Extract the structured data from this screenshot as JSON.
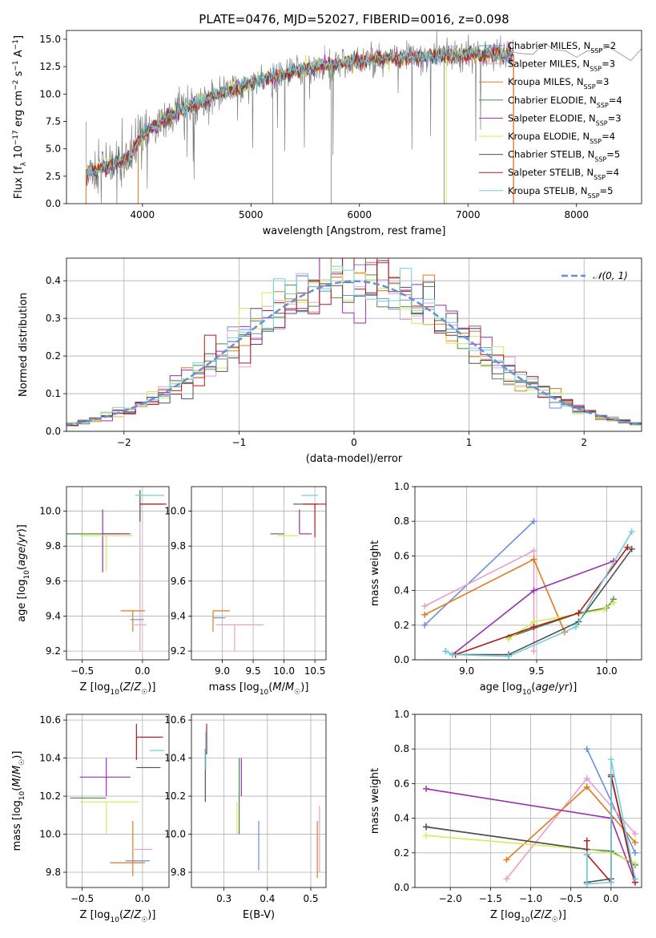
{
  "figure": {
    "title": "PLATE=0476, MJD=52027, FIBERID=0016, z=0.098"
  },
  "colors": {
    "chabrier_miles": "#6a8fd8",
    "salpeter_miles": "#e8a0c8",
    "kroupa_miles": "#e07a1f",
    "chabrier_elodie": "#4c8a4c",
    "salpeter_elodie": "#9a2fb0",
    "kroupa_elodie": "#d8e85a",
    "chabrier_stelib": "#505050",
    "salpeter_stelib": "#b01c1c",
    "kroupa_stelib": "#6fd0e0",
    "data": "#808080",
    "grid": "#b0b0b0",
    "normal_curve": "#6a8fd8"
  },
  "chart_data": [
    {
      "id": "spectrum",
      "type": "line",
      "xlabel": "wavelength [Angstrom, rest frame]",
      "ylabel": "Flux [f_λ 10^-17 erg cm^-2 s^-1 A^-1]",
      "xlim": [
        3300,
        8600
      ],
      "ylim": [
        0,
        15.8
      ],
      "xticks": [
        4000,
        5000,
        6000,
        7000,
        8000
      ],
      "yticks": [
        0.0,
        2.5,
        5.0,
        7.5,
        10.0,
        12.5,
        15.0
      ],
      "grid": false,
      "legend_position": "top-right",
      "legend": [
        {
          "label": "Chabrier MILES, N",
          "sub": "SSP",
          "suffix": "=2",
          "color_key": "chabrier_miles"
        },
        {
          "label": "Salpeter MILES, N",
          "sub": "SSP",
          "suffix": "=3",
          "color_key": "salpeter_miles"
        },
        {
          "label": "Kroupa MILES, N",
          "sub": "SSP",
          "suffix": "=3",
          "color_key": "kroupa_miles"
        },
        {
          "label": "Chabrier ELODIE, N",
          "sub": "SSP",
          "suffix": "=4",
          "color_key": "chabrier_elodie"
        },
        {
          "label": "Salpeter ELODIE, N",
          "sub": "SSP",
          "suffix": "=3",
          "color_key": "salpeter_elodie"
        },
        {
          "label": "Kroupa ELODIE, N",
          "sub": "SSP",
          "suffix": "=4",
          "color_key": "kroupa_elodie"
        },
        {
          "label": "Chabrier STELIB, N",
          "sub": "SSP",
          "suffix": "=5",
          "color_key": "chabrier_stelib"
        },
        {
          "label": "Salpeter STELIB, N",
          "sub": "SSP",
          "suffix": "=4",
          "color_key": "salpeter_stelib"
        },
        {
          "label": "Kroupa STELIB, N",
          "sub": "SSP",
          "suffix": "=5",
          "color_key": "kroupa_stelib"
        }
      ],
      "model_continuum": {
        "x": [
          3480,
          3600,
          3700,
          3800,
          3900,
          3950,
          4000,
          4100,
          4200,
          4300,
          4400,
          4500,
          4600,
          4800,
          5000,
          5200,
          5400,
          5600,
          5800,
          6000,
          6200,
          6400,
          6600,
          6800,
          7000,
          7200,
          7400
        ],
        "y": [
          2.8,
          3.2,
          3.5,
          3.8,
          4.2,
          5.8,
          6.3,
          7.0,
          7.6,
          8.2,
          8.7,
          9.1,
          9.6,
          10.3,
          11.0,
          11.6,
          12.1,
          12.5,
          12.8,
          13.0,
          13.2,
          13.3,
          13.4,
          13.5,
          13.6,
          13.6,
          13.6
        ]
      },
      "data_extra": {
        "x": [
          7500,
          7600,
          7700,
          7800,
          7900,
          8000,
          8100,
          8200,
          8300,
          8400,
          8500,
          8600
        ],
        "y": [
          14.2,
          13.9,
          14.5,
          14.0,
          14.3,
          13.8,
          14.1,
          13.9,
          14.4,
          14.0,
          13.7,
          14.2
        ]
      }
    },
    {
      "id": "residuals",
      "type": "histogram",
      "xlabel": "(data-model)/error",
      "ylabel": "Normed distribution",
      "xlim": [
        -2.5,
        2.5
      ],
      "ylim": [
        0,
        0.46
      ],
      "xticks": [
        -2,
        -1,
        0,
        1,
        2
      ],
      "yticks": [
        0.0,
        0.1,
        0.2,
        0.3,
        0.4
      ],
      "grid": true,
      "legend_label": "𝒩(0, 1)",
      "legend_position": "top-right",
      "bin_width": 0.1
    },
    {
      "id": "age_vs_Z",
      "type": "errorbar",
      "xlabel": "Z [log10(Z/Z☉)]",
      "ylabel": "age [log10(age/yr)]",
      "xlim": [
        -0.63,
        0.22
      ],
      "ylim": [
        9.15,
        10.14
      ],
      "xticks": [
        -0.5,
        0.0
      ],
      "yticks": [
        9.2,
        9.4,
        9.6,
        9.8,
        10.0
      ],
      "grid": true,
      "points": [
        {
          "model": "chabrier_miles",
          "x": -0.05,
          "xerr": [
            0.05,
            0.06
          ],
          "y": 9.38,
          "yerr": [
            0.0,
            0.0
          ]
        },
        {
          "model": "salpeter_miles",
          "x": -0.02,
          "xerr": [
            0.05,
            0.05
          ],
          "y": 9.35,
          "yerr": [
            0.15,
            0.73
          ]
        },
        {
          "model": "kroupa_miles",
          "x": -0.08,
          "xerr": [
            0.1,
            0.1
          ],
          "y": 9.43,
          "yerr": [
            0.12,
            0.0
          ]
        },
        {
          "model": "chabrier_elodie",
          "x": -0.34,
          "xerr": [
            0.29,
            0.17
          ],
          "y": 9.87,
          "yerr": [
            0.0,
            0.0
          ]
        },
        {
          "model": "salpeter_elodie",
          "x": -0.33,
          "xerr": [
            0.0,
            0.23
          ],
          "y": 9.87,
          "yerr": [
            0.22,
            0.14
          ]
        },
        {
          "model": "kroupa_elodie",
          "x": -0.3,
          "xerr": [
            0.22,
            0.22
          ],
          "y": 9.86,
          "yerr": [
            0.2,
            0.0
          ]
        },
        {
          "model": "chabrier_stelib",
          "x": -0.02,
          "xerr": [
            0.0,
            0.2
          ],
          "y": 10.04,
          "yerr": [
            0.1,
            0.08
          ]
        },
        {
          "model": "salpeter_stelib",
          "x": -0.02,
          "xerr": [
            0.0,
            0.22
          ],
          "y": 10.04,
          "yerr": [
            0.0,
            0.0
          ]
        },
        {
          "model": "kroupa_stelib",
          "x": 0.04,
          "xerr": [
            0.1,
            0.14
          ],
          "y": 10.09,
          "yerr": [
            0.0,
            0.0
          ]
        }
      ]
    },
    {
      "id": "age_vs_mass",
      "type": "errorbar",
      "xlabel": "mass [log10(M/M☉)]",
      "xlim": [
        8.5,
        10.68
      ],
      "ylim": [
        9.15,
        10.14
      ],
      "xticks": [
        9.0,
        9.5,
        10.0,
        10.5
      ],
      "yticks": [
        9.2,
        9.4,
        9.6,
        9.8,
        10.0
      ],
      "grid": true,
      "points": [
        {
          "model": "chabrier_miles",
          "x": 8.85,
          "xerr": [
            0.0,
            0.2
          ],
          "y": 9.39,
          "yerr": [
            0.0,
            0.0
          ]
        },
        {
          "model": "salpeter_miles",
          "x": 9.2,
          "xerr": [
            0.3,
            0.47
          ],
          "y": 9.35,
          "yerr": [
            0.15,
            0.0
          ]
        },
        {
          "model": "kroupa_miles",
          "x": 8.85,
          "xerr": [
            0.0,
            0.27
          ],
          "y": 9.43,
          "yerr": [
            0.12,
            0.0
          ]
        },
        {
          "model": "chabrier_elodie",
          "x": 10.0,
          "xerr": [
            0.22,
            0.0
          ],
          "y": 9.87,
          "yerr": [
            0.0,
            0.0
          ]
        },
        {
          "model": "salpeter_elodie",
          "x": 10.25,
          "xerr": [
            0.0,
            0.2
          ],
          "y": 9.87,
          "yerr": [
            0.0,
            0.14
          ]
        },
        {
          "model": "kroupa_elodie",
          "x": 10.15,
          "xerr": [
            0.25,
            0.08
          ],
          "y": 9.86,
          "yerr": [
            0.0,
            0.0
          ]
        },
        {
          "model": "chabrier_stelib",
          "x": 10.35,
          "xerr": [
            0.2,
            0.2
          ],
          "y": 10.04,
          "yerr": [
            0.0,
            0.0
          ]
        },
        {
          "model": "salpeter_stelib",
          "x": 10.5,
          "xerr": [
            0.2,
            0.2
          ],
          "y": 10.04,
          "yerr": [
            0.19,
            0.0
          ]
        },
        {
          "model": "kroupa_stelib",
          "x": 10.43,
          "xerr": [
            0.15,
            0.12
          ],
          "y": 10.09,
          "yerr": [
            0.0,
            0.0
          ]
        }
      ]
    },
    {
      "id": "weight_vs_age",
      "type": "line",
      "xlabel": "age [log10(age/yr)]",
      "ylabel": "mass weight",
      "xlim": [
        8.63,
        10.25
      ],
      "ylim": [
        0,
        1.0
      ],
      "xticks": [
        9.0,
        9.5,
        10.0
      ],
      "yticks": [
        0.0,
        0.2,
        0.4,
        0.6,
        0.8,
        1.0
      ],
      "grid": true,
      "series": [
        {
          "model": "chabrier_miles",
          "x": [
            8.7,
            9.48
          ],
          "y": [
            0.2,
            0.8
          ]
        },
        {
          "model": "salpeter_miles",
          "x": [
            8.7,
            9.48,
            9.48
          ],
          "y": [
            0.31,
            0.63,
            0.05
          ]
        },
        {
          "model": "kroupa_miles",
          "x": [
            8.7,
            9.48,
            9.7
          ],
          "y": [
            0.26,
            0.58,
            0.16
          ]
        },
        {
          "model": "chabrier_elodie",
          "x": [
            9.3,
            9.8,
            10.0,
            10.05
          ],
          "y": [
            0.13,
            0.27,
            0.3,
            0.35
          ]
        },
        {
          "model": "salpeter_elodie",
          "x": [
            8.9,
            9.48,
            10.05
          ],
          "y": [
            0.03,
            0.4,
            0.57
          ]
        },
        {
          "model": "kroupa_elodie",
          "x": [
            9.3,
            9.48,
            9.98,
            10.05
          ],
          "y": [
            0.12,
            0.22,
            0.29,
            0.33
          ]
        },
        {
          "model": "chabrier_stelib",
          "x": [
            8.85,
            8.9,
            9.3,
            9.8,
            10.18
          ],
          "y": [
            0.05,
            0.03,
            0.03,
            0.22,
            0.64
          ]
        },
        {
          "model": "salpeter_stelib",
          "x": [
            8.92,
            9.48,
            9.8,
            10.15
          ],
          "y": [
            0.03,
            0.19,
            0.27,
            0.65
          ]
        },
        {
          "model": "kroupa_stelib",
          "x": [
            8.85,
            8.9,
            9.3,
            9.78,
            10.18
          ],
          "y": [
            0.05,
            0.03,
            0.02,
            0.19,
            0.74
          ]
        }
      ]
    },
    {
      "id": "mass_vs_Z",
      "type": "errorbar",
      "xlabel": "Z [log10(Z/Z☉)]",
      "ylabel": "mass [log10(M/M☉)]",
      "xlim": [
        -0.63,
        0.22
      ],
      "ylim": [
        9.72,
        10.63
      ],
      "xticks": [
        -0.5,
        0.0
      ],
      "yticks": [
        9.8,
        10.0,
        10.2,
        10.4,
        10.6
      ],
      "grid": true,
      "points": [
        {
          "model": "chabrier_miles",
          "x": -0.04,
          "xerr": [
            0.1,
            0.1
          ],
          "y": 9.86,
          "yerr": [
            0.0,
            0.0
          ]
        },
        {
          "model": "salpeter_miles",
          "x": 0.0,
          "xerr": [
            0.07,
            0.08
          ],
          "y": 9.92,
          "yerr": [
            0.0,
            0.0
          ]
        },
        {
          "model": "kroupa_miles",
          "x": -0.08,
          "xerr": [
            0.19,
            0.1
          ],
          "y": 9.85,
          "yerr": [
            0.07,
            0.22
          ]
        },
        {
          "model": "chabrier_elodie",
          "x": -0.3,
          "xerr": [
            0.3,
            0.0
          ],
          "y": 10.19,
          "yerr": [
            0.0,
            0.0
          ]
        },
        {
          "model": "salpeter_elodie",
          "x": -0.3,
          "xerr": [
            0.22,
            0.2
          ],
          "y": 10.3,
          "yerr": [
            0.1,
            0.1
          ]
        },
        {
          "model": "kroupa_elodie",
          "x": -0.3,
          "xerr": [
            0.22,
            0.27
          ],
          "y": 10.17,
          "yerr": [
            0.17,
            0.0
          ]
        },
        {
          "model": "chabrier_stelib",
          "x": -0.05,
          "xerr": [
            0.0,
            0.2
          ],
          "y": 10.35,
          "yerr": [
            0.0,
            0.0
          ]
        },
        {
          "model": "salpeter_stelib",
          "x": -0.05,
          "xerr": [
            0.0,
            0.22
          ],
          "y": 10.51,
          "yerr": [
            0.12,
            0.07
          ]
        },
        {
          "model": "kroupa_stelib",
          "x": 0.06,
          "xerr": [
            0.0,
            0.12
          ],
          "y": 10.44,
          "yerr": [
            0.0,
            0.0
          ]
        }
      ]
    },
    {
      "id": "mass_vs_ebv",
      "type": "errorbar",
      "xlabel": "E(B-V)",
      "xlim": [
        0.225,
        0.535
      ],
      "ylim": [
        9.72,
        10.63
      ],
      "xticks": [
        0.3,
        0.4,
        0.5
      ],
      "yticks": [
        9.8,
        10.0,
        10.2,
        10.4,
        10.6
      ],
      "grid": true,
      "points": [
        {
          "model": "chabrier_miles",
          "x": 0.38,
          "xerr": [
            0.0,
            0.0
          ],
          "y": 9.94,
          "yerr": [
            0.13,
            0.13
          ]
        },
        {
          "model": "salpeter_miles",
          "x": 0.52,
          "xerr": [
            0.0,
            0.0
          ],
          "y": 9.95,
          "yerr": [
            0.15,
            0.2
          ]
        },
        {
          "model": "kroupa_miles",
          "x": 0.515,
          "xerr": [
            0.0,
            0.0
          ],
          "y": 9.9,
          "yerr": [
            0.13,
            0.17
          ]
        },
        {
          "model": "chabrier_elodie",
          "x": 0.335,
          "xerr": [
            0.0,
            0.0
          ],
          "y": 10.2,
          "yerr": [
            0.2,
            0.2
          ]
        },
        {
          "model": "salpeter_elodie",
          "x": 0.34,
          "xerr": [
            0.0,
            0.0
          ],
          "y": 10.3,
          "yerr": [
            0.1,
            0.1
          ]
        },
        {
          "model": "kroupa_elodie",
          "x": 0.33,
          "xerr": [
            0.0,
            0.0
          ],
          "y": 10.17,
          "yerr": [
            0.17,
            0.0
          ]
        },
        {
          "model": "chabrier_stelib",
          "x": 0.257,
          "xerr": [
            0.0,
            0.0
          ],
          "y": 10.35,
          "yerr": [
            0.18,
            0.1
          ]
        },
        {
          "model": "salpeter_stelib",
          "x": 0.26,
          "xerr": [
            0.0,
            0.0
          ],
          "y": 10.5,
          "yerr": [
            0.08,
            0.08
          ]
        },
        {
          "model": "kroupa_stelib",
          "x": 0.258,
          "xerr": [
            0.0,
            0.0
          ],
          "y": 10.44,
          "yerr": [
            0.1,
            0.1
          ]
        }
      ]
    },
    {
      "id": "weight_vs_Z",
      "type": "line",
      "xlabel": "Z [log10(Z/Z☉)]",
      "ylabel": "mass weight",
      "xlim": [
        -2.44,
        0.38
      ],
      "ylim": [
        0,
        1.0
      ],
      "xticks": [
        -2.0,
        -1.5,
        -1.0,
        -0.5,
        0.0
      ],
      "yticks": [
        0.0,
        0.2,
        0.4,
        0.6,
        0.8,
        1.0
      ],
      "grid": true,
      "series": [
        {
          "model": "chabrier_miles",
          "x": [
            -0.3,
            0.3
          ],
          "y": [
            0.8,
            0.2
          ]
        },
        {
          "model": "salpeter_miles",
          "x": [
            -1.3,
            -0.3,
            0.3
          ],
          "y": [
            0.05,
            0.63,
            0.31
          ]
        },
        {
          "model": "kroupa_miles",
          "x": [
            -1.3,
            -0.3,
            0.3
          ],
          "y": [
            0.16,
            0.58,
            0.26
          ]
        },
        {
          "model": "chabrier_elodie",
          "x": [
            -2.3,
            -0.3,
            0.0,
            0.3
          ],
          "y": [
            0.35,
            0.22,
            0.21,
            0.13
          ]
        },
        {
          "model": "salpeter_elodie",
          "x": [
            -2.3,
            0.0,
            0.3
          ],
          "y": [
            0.57,
            0.4,
            0.03
          ]
        },
        {
          "model": "kroupa_elodie",
          "x": [
            -2.3,
            -0.3,
            0.0,
            0.3
          ],
          "y": [
            0.3,
            0.22,
            0.2,
            0.14
          ]
        },
        {
          "model": "chabrier_stelib",
          "x": [
            -2.3,
            -0.3,
            -0.3,
            0.0,
            0.0,
            0.3
          ],
          "y": [
            0.35,
            0.22,
            0.03,
            0.05,
            0.64,
            0.05
          ]
        },
        {
          "model": "salpeter_stelib",
          "x": [
            -0.3,
            -0.3,
            0.0,
            0.0,
            0.3
          ],
          "y": [
            0.27,
            0.19,
            0.03,
            0.65,
            0.03
          ]
        },
        {
          "model": "kroupa_stelib",
          "x": [
            -0.3,
            -0.3,
            0.0,
            0.0,
            0.3
          ],
          "y": [
            0.19,
            0.02,
            0.03,
            0.74,
            0.05
          ]
        }
      ]
    }
  ]
}
